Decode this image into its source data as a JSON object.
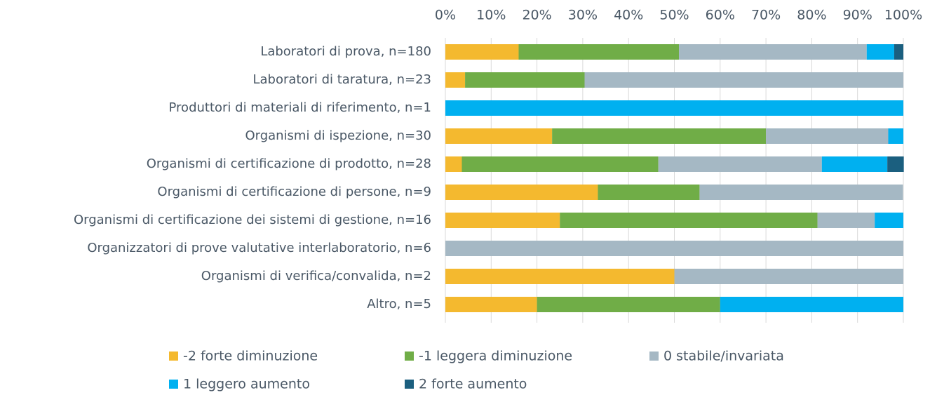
{
  "chart_data": {
    "type": "stacked_barh",
    "categories": [
      "Laboratori di prova, n=180",
      "Laboratori di taratura, n=23",
      "Produttori di materiali di riferimento, n=1",
      "Organismi di ispezione, n=30",
      "Organismi di certificazione di prodotto, n=28",
      "Organismi di certificazione di persone, n=9",
      "Organismi di certificazione dei sistemi di gestione, n=16",
      "Organizzatori di prove valutative interlaboratorio, n=6",
      "Organismi di verifica/convalida, n=2",
      "Altro, n=5"
    ],
    "series": [
      {
        "name": "-2 forte diminuzione",
        "color": "#f4b92f",
        "values": [
          16,
          4.3,
          0,
          23.3,
          3.6,
          33.3,
          25,
          0,
          50,
          20
        ]
      },
      {
        "name": "-1 leggera diminuzione",
        "color": "#70ad47",
        "values": [
          35,
          26.1,
          0,
          46.7,
          42.9,
          22.2,
          56.25,
          0,
          0,
          40
        ]
      },
      {
        "name": "0 stabile/invariata",
        "color": "#a5b8c4",
        "values": [
          41,
          69.6,
          0,
          26.7,
          35.7,
          44.4,
          12.5,
          100,
          50,
          0
        ]
      },
      {
        "name": "1 leggero aumento",
        "color": "#00b0f0",
        "values": [
          6,
          0,
          100,
          3.3,
          14.3,
          0,
          6.25,
          0,
          0,
          40
        ]
      },
      {
        "name": "2 forte aumento",
        "color": "#1b5f7f",
        "values": [
          2,
          0,
          0,
          0,
          3.6,
          0,
          0,
          0,
          0,
          0
        ]
      }
    ],
    "xlim": [
      0,
      100
    ],
    "xticks": [
      {
        "value": 0,
        "label": "0%"
      },
      {
        "value": 10,
        "label": "10%"
      },
      {
        "value": 20,
        "label": "20%"
      },
      {
        "value": 30,
        "label": "30%"
      },
      {
        "value": 40,
        "label": "40%"
      },
      {
        "value": 50,
        "label": "50%"
      },
      {
        "value": 60,
        "label": "60%"
      },
      {
        "value": 70,
        "label": "70%"
      },
      {
        "value": 80,
        "label": "80%"
      },
      {
        "value": 90,
        "label": "90%"
      },
      {
        "value": 100,
        "label": "100%"
      }
    ],
    "grid": true,
    "legend": "bottom"
  }
}
